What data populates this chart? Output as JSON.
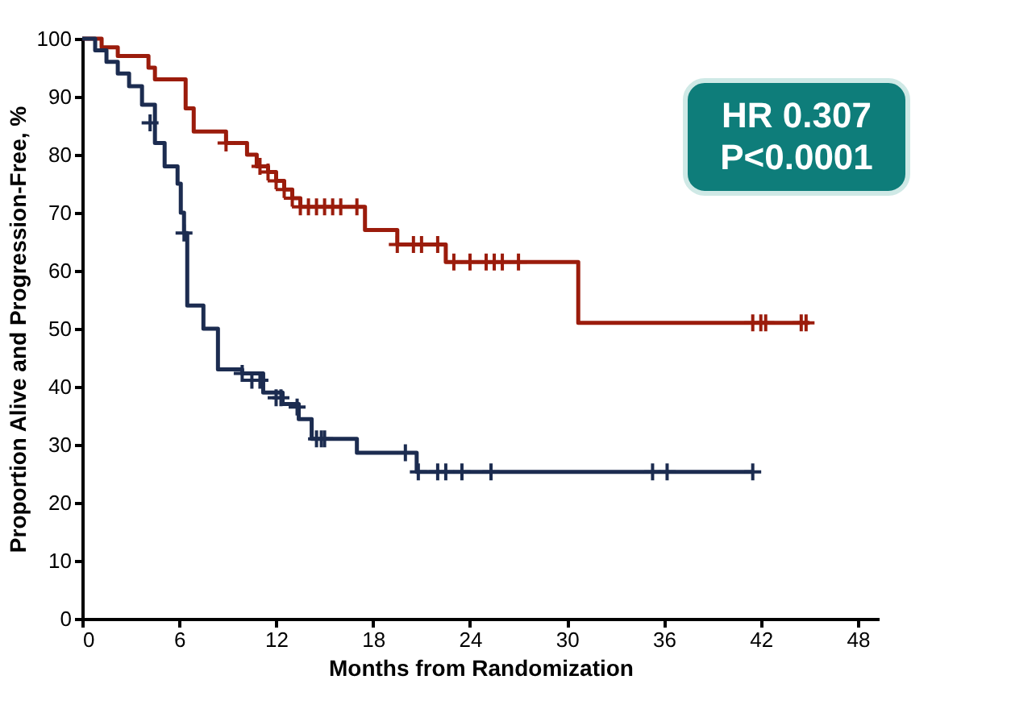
{
  "chart_data": {
    "type": "step",
    "xlabel": "Months from Randomization",
    "ylabel": "Proportion Alive and Progression-Free, %",
    "xlim": [
      0,
      49.3
    ],
    "xticks": [
      0,
      6,
      12,
      18,
      24,
      30,
      36,
      42,
      48
    ],
    "ylim": [
      0,
      100
    ],
    "yticks": [
      0,
      10,
      20,
      30,
      40,
      50,
      60,
      70,
      80,
      90,
      100
    ],
    "grid": false,
    "annotations": [
      "HR 0.307",
      "P<0.0001"
    ],
    "series": [
      {
        "color": "#9b1c0c",
        "x": [
          0,
          1.2,
          2.2,
          4.1,
          4.5,
          6.4,
          6.9,
          8.9,
          10.2,
          10.8,
          11.5,
          12,
          12.5,
          13,
          13.5,
          17.5,
          19.5,
          22.5,
          30.7,
          45
        ],
        "values": [
          100,
          98.5,
          97,
          95,
          93,
          88,
          84,
          82,
          80,
          78,
          77,
          75.5,
          74,
          72.5,
          71,
          67,
          64.5,
          61.5,
          51,
          51
        ]
      },
      {
        "color": "#1c2c50",
        "x": [
          0,
          0.8,
          1.5,
          2.2,
          2.9,
          3.7,
          4.5,
          5.1,
          5.9,
          6.1,
          6.3,
          6.5,
          7.5,
          8.4,
          9.9,
          11.2,
          12.4,
          13.4,
          14.2,
          17,
          20.7,
          41.5
        ],
        "values": [
          100,
          98,
          96,
          94,
          91.8,
          88.6,
          82,
          78,
          75,
          70,
          66.5,
          54,
          50,
          43,
          42.3,
          39,
          37,
          34.4,
          31,
          28.6,
          25.3,
          25.3
        ]
      },
      {
        "type": "scatter",
        "marker": "cross",
        "color": "#9b1c0c",
        "x": [
          8.9,
          11,
          11.5,
          12,
          12.5,
          13,
          13.5,
          14,
          14.5,
          15,
          15.5,
          16,
          17,
          19.5,
          20.5,
          21,
          22,
          23,
          24,
          25,
          25.5,
          26,
          27,
          41.5,
          42,
          42.3,
          44.5,
          44.8
        ],
        "values": [
          82,
          78,
          77,
          75.5,
          74,
          72.5,
          71,
          71,
          71,
          71,
          71,
          71,
          71,
          64.5,
          64.5,
          64.5,
          64.5,
          61.5,
          61.5,
          61.5,
          61.5,
          61.5,
          61.5,
          51,
          51,
          51,
          51,
          51
        ]
      },
      {
        "type": "scatter",
        "marker": "cross",
        "color": "#1c2c50",
        "x": [
          4.2,
          6.3,
          9.9,
          10.5,
          11,
          12,
          12.3,
          13.3,
          14.5,
          14.8,
          15,
          20,
          20.8,
          22,
          22.5,
          23.5,
          25.3,
          35.3,
          36.2,
          41.5
        ],
        "values": [
          85.5,
          66.5,
          42.3,
          41.1,
          41.1,
          38.1,
          38.1,
          36.5,
          31,
          31,
          31,
          28.6,
          25.3,
          25.3,
          25.3,
          25.3,
          25.3,
          25.3,
          25.3,
          25.3
        ]
      }
    ]
  }
}
